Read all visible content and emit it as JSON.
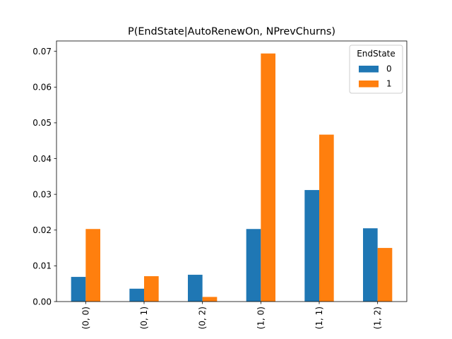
{
  "chart_data": {
    "type": "bar",
    "title": "P(EndState|AutoRenewOn, NPrevChurns)",
    "xlabel": "",
    "ylabel": "",
    "categories": [
      "(0, 0)",
      "(0, 1)",
      "(0, 2)",
      "(1, 0)",
      "(1, 1)",
      "(1, 2)"
    ],
    "series": [
      {
        "name": "0",
        "color": "#1f77b4",
        "values": [
          0.0069,
          0.0036,
          0.0075,
          0.0203,
          0.0312,
          0.0205
        ]
      },
      {
        "name": "1",
        "color": "#ff7f0e",
        "values": [
          0.0203,
          0.0071,
          0.0013,
          0.0694,
          0.0467,
          0.015
        ]
      }
    ],
    "ylim": [
      0,
      0.0729
    ],
    "yticks": [
      "0.00",
      "0.01",
      "0.02",
      "0.03",
      "0.04",
      "0.05",
      "0.06",
      "0.07"
    ],
    "ytick_values": [
      0,
      0.01,
      0.02,
      0.03,
      0.04,
      0.05,
      0.06,
      0.07
    ],
    "x_tick_rotation": "vertical",
    "grid": false,
    "legend": {
      "title": "EndState",
      "placement": "top-right"
    }
  }
}
